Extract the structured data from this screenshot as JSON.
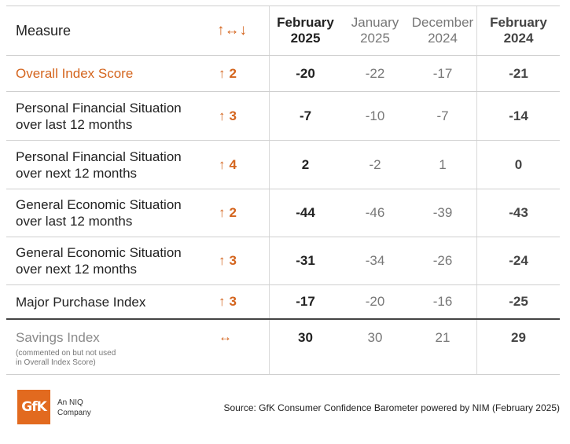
{
  "header": {
    "measure": "Measure",
    "change_symbol": "↑↔↓",
    "col_feb25_line1": "February",
    "col_feb25_line2": "2025",
    "col_jan25_line1": "January",
    "col_jan25_line2": "2025",
    "col_dec24_line1": "December",
    "col_dec24_line2": "2024",
    "col_feb24_line1": "February",
    "col_feb24_line2": "2024"
  },
  "rows": [
    {
      "measure_line1": "Overall Index Score",
      "measure_line2": "",
      "arrow": "↑",
      "change": "2",
      "feb25": "-20",
      "jan25": "-22",
      "dec24": "-17",
      "feb24": "-21"
    },
    {
      "measure_line1": "Personal Financial Situation",
      "measure_line2": "over last 12 months",
      "arrow": "↑",
      "change": "3",
      "feb25": "-7",
      "jan25": "-10",
      "dec24": "-7",
      "feb24": "-14"
    },
    {
      "measure_line1": "Personal Financial Situation",
      "measure_line2": "over next 12 months",
      "arrow": "↑",
      "change": "4",
      "feb25": "2",
      "jan25": "-2",
      "dec24": "1",
      "feb24": "0"
    },
    {
      "measure_line1": "General Economic Situation",
      "measure_line2": "over last 12 months",
      "arrow": "↑",
      "change": "2",
      "feb25": "-44",
      "jan25": "-46",
      "dec24": "-39",
      "feb24": "-43"
    },
    {
      "measure_line1": "General Economic Situation",
      "measure_line2": "over next 12 months",
      "arrow": "↑",
      "change": "3",
      "feb25": "-31",
      "jan25": "-34",
      "dec24": "-26",
      "feb24": "-24"
    },
    {
      "measure_line1": "Major Purchase Index",
      "measure_line2": "",
      "arrow": "↑",
      "change": "3",
      "feb25": "-17",
      "jan25": "-20",
      "dec24": "-16",
      "feb24": "-25"
    }
  ],
  "savings": {
    "measure": "Savings Index",
    "note_line1": "(commented on but not used",
    "note_line2": "in Overall Index Score)",
    "arrow": "↔",
    "feb25": "30",
    "jan25": "30",
    "dec24": "21",
    "feb24": "29"
  },
  "footer": {
    "logo_text": "GfK",
    "company_line1": "An NIQ",
    "company_line2": "Company",
    "source": "Source: GfK Consumer Confidence Barometer powered by NIM (February 2025)"
  },
  "colors": {
    "accent": "#d4651e",
    "logo_bg": "#e26a1f"
  }
}
